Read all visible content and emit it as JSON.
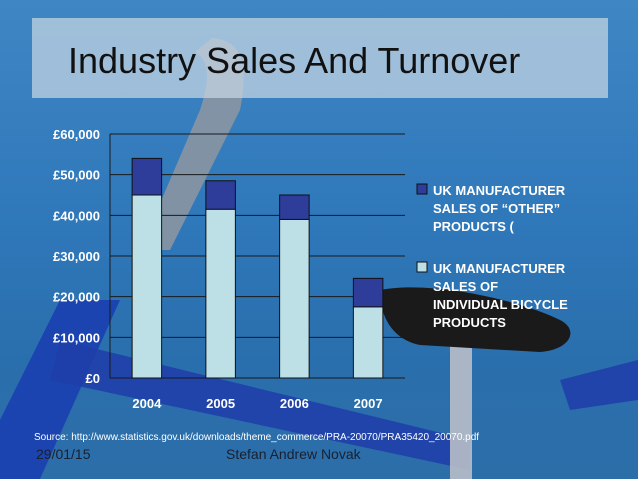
{
  "slide": {
    "title": "Industry Sales And Turnover",
    "source": "Source: http://www.statistics.gov.uk/downloads/theme_commerce/PRA-20070/PRA35420_20070.pdf",
    "date": "29/01/15",
    "author": "Stefan Andrew Novak"
  },
  "chart_data": {
    "type": "bar",
    "stacked": true,
    "categories": [
      "2004",
      "2005",
      "2006",
      "2007"
    ],
    "series": [
      {
        "name": "UK MANUFACTURER SALES OF INDIVIDUAL BICYCLE PRODUCTS",
        "values": [
          45000,
          41500,
          39000,
          17500
        ],
        "color": "#bde0e6"
      },
      {
        "name": "UK MANUFACTURER SALES OF “OTHER” PRODUCTS (",
        "values": [
          9000,
          7000,
          6000,
          7000
        ],
        "color": "#2e3c9a"
      }
    ],
    "ylim": [
      0,
      60000
    ],
    "yticks": [
      "£0",
      "£10,000",
      "£20,000",
      "£30,000",
      "£40,000",
      "£50,000",
      "£60,000"
    ],
    "legend_lines": [
      [
        "UK MANUFACTURER",
        "SALES OF “OTHER”",
        "PRODUCTS ("
      ],
      [
        "UK MANUFACTURER",
        "SALES OF",
        "INDIVIDUAL BICYCLE",
        "PRODUCTS"
      ]
    ],
    "legend_position": "right",
    "grid": true
  }
}
